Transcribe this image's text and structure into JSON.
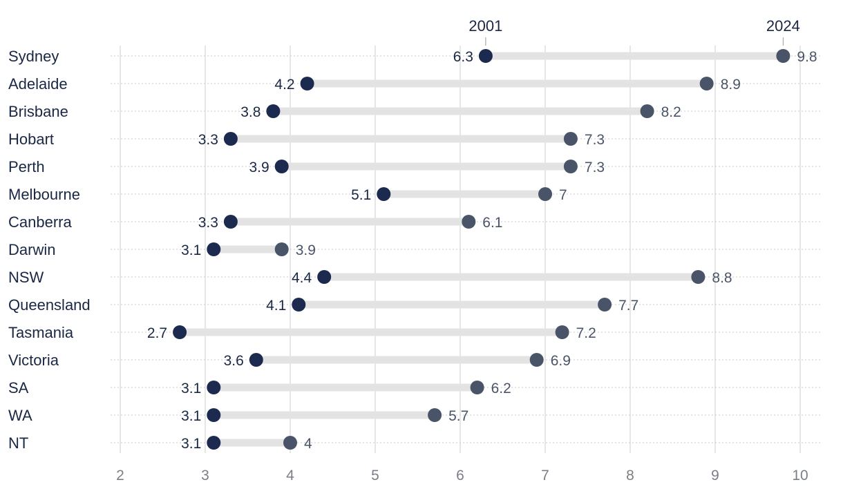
{
  "chart_data": {
    "type": "dumbbell",
    "categories": [
      "Sydney",
      "Adelaide",
      "Brisbane",
      "Hobart",
      "Perth",
      "Melbourne",
      "Canberra",
      "Darwin",
      "NSW",
      "Queensland",
      "Tasmania",
      "Victoria",
      "SA",
      "WA",
      "NT"
    ],
    "series": [
      {
        "name": "2001",
        "color": "#1b2a4e",
        "values": [
          6.3,
          4.2,
          3.8,
          3.3,
          3.9,
          5.1,
          3.3,
          3.1,
          4.4,
          4.1,
          2.7,
          3.6,
          3.1,
          3.1,
          3.1
        ]
      },
      {
        "name": "2024",
        "color": "#4a5468",
        "values": [
          9.8,
          8.9,
          8.2,
          7.3,
          7.3,
          7,
          6.1,
          3.9,
          8.8,
          7.7,
          7.2,
          6.9,
          6.2,
          5.7,
          4
        ]
      }
    ],
    "xlim": [
      2,
      10
    ],
    "xticks": [
      2,
      3,
      4,
      5,
      6,
      7,
      8,
      9,
      10
    ],
    "x_grid": true,
    "connector_color": "#e3e3e3",
    "legend_placement": "top, labels above first-row points"
  }
}
